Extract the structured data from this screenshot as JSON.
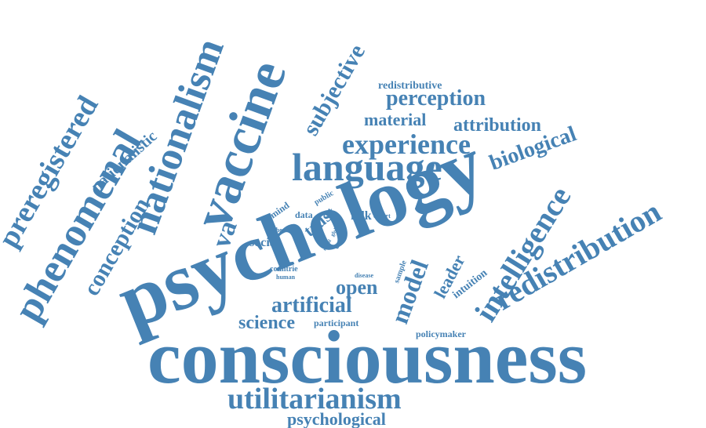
{
  "palette": {
    "word": "#4682B4",
    "background": "#ffffff"
  },
  "words": [
    "consciousness",
    "psychology",
    "vaccine",
    "nationalism",
    "phenomenal",
    "preregistered",
    "language",
    "experience",
    "utilitarianism",
    "redistribution",
    "intelligence",
    "perception",
    "biological",
    "subjective",
    "conception",
    "artificial",
    "attribution",
    "material",
    "model",
    "science",
    "psychological",
    "nationalistic",
    "open",
    "leader",
    "trust",
    "redistributive",
    "social",
    "mind",
    "data",
    "folk",
    "public",
    "intuition",
    "policymaker",
    "participant",
    "sample",
    "code",
    "countrie",
    "human",
    "disease",
    "higher",
    "global",
    "expert",
    "moral",
    "va"
  ]
}
